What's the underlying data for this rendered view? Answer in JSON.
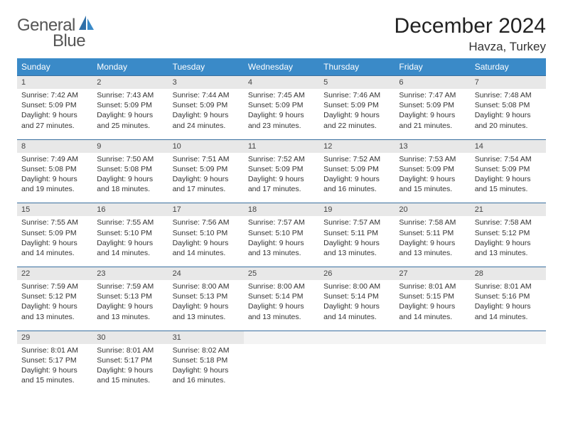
{
  "logo": {
    "text1": "General",
    "text2": "Blue"
  },
  "title": "December 2024",
  "location": "Havza, Turkey",
  "colors": {
    "header_bg": "#3a8ac8",
    "header_text": "#ffffff",
    "daynum_bg": "#e8e8e8",
    "daynum_border": "#3a6fa0",
    "body_text": "#333333",
    "logo_text": "#555555",
    "logo_accent": "#2f6fa8"
  },
  "typography": {
    "title_fontsize": 30,
    "location_fontsize": 17,
    "dayheader_fontsize": 12,
    "daynum_fontsize": 11,
    "detail_fontsize": 10.5
  },
  "dayHeaders": [
    "Sunday",
    "Monday",
    "Tuesday",
    "Wednesday",
    "Thursday",
    "Friday",
    "Saturday"
  ],
  "weeks": [
    [
      {
        "n": "1",
        "sr": "Sunrise: 7:42 AM",
        "ss": "Sunset: 5:09 PM",
        "d1": "Daylight: 9 hours",
        "d2": "and 27 minutes."
      },
      {
        "n": "2",
        "sr": "Sunrise: 7:43 AM",
        "ss": "Sunset: 5:09 PM",
        "d1": "Daylight: 9 hours",
        "d2": "and 25 minutes."
      },
      {
        "n": "3",
        "sr": "Sunrise: 7:44 AM",
        "ss": "Sunset: 5:09 PM",
        "d1": "Daylight: 9 hours",
        "d2": "and 24 minutes."
      },
      {
        "n": "4",
        "sr": "Sunrise: 7:45 AM",
        "ss": "Sunset: 5:09 PM",
        "d1": "Daylight: 9 hours",
        "d2": "and 23 minutes."
      },
      {
        "n": "5",
        "sr": "Sunrise: 7:46 AM",
        "ss": "Sunset: 5:09 PM",
        "d1": "Daylight: 9 hours",
        "d2": "and 22 minutes."
      },
      {
        "n": "6",
        "sr": "Sunrise: 7:47 AM",
        "ss": "Sunset: 5:09 PM",
        "d1": "Daylight: 9 hours",
        "d2": "and 21 minutes."
      },
      {
        "n": "7",
        "sr": "Sunrise: 7:48 AM",
        "ss": "Sunset: 5:08 PM",
        "d1": "Daylight: 9 hours",
        "d2": "and 20 minutes."
      }
    ],
    [
      {
        "n": "8",
        "sr": "Sunrise: 7:49 AM",
        "ss": "Sunset: 5:08 PM",
        "d1": "Daylight: 9 hours",
        "d2": "and 19 minutes."
      },
      {
        "n": "9",
        "sr": "Sunrise: 7:50 AM",
        "ss": "Sunset: 5:08 PM",
        "d1": "Daylight: 9 hours",
        "d2": "and 18 minutes."
      },
      {
        "n": "10",
        "sr": "Sunrise: 7:51 AM",
        "ss": "Sunset: 5:09 PM",
        "d1": "Daylight: 9 hours",
        "d2": "and 17 minutes."
      },
      {
        "n": "11",
        "sr": "Sunrise: 7:52 AM",
        "ss": "Sunset: 5:09 PM",
        "d1": "Daylight: 9 hours",
        "d2": "and 17 minutes."
      },
      {
        "n": "12",
        "sr": "Sunrise: 7:52 AM",
        "ss": "Sunset: 5:09 PM",
        "d1": "Daylight: 9 hours",
        "d2": "and 16 minutes."
      },
      {
        "n": "13",
        "sr": "Sunrise: 7:53 AM",
        "ss": "Sunset: 5:09 PM",
        "d1": "Daylight: 9 hours",
        "d2": "and 15 minutes."
      },
      {
        "n": "14",
        "sr": "Sunrise: 7:54 AM",
        "ss": "Sunset: 5:09 PM",
        "d1": "Daylight: 9 hours",
        "d2": "and 15 minutes."
      }
    ],
    [
      {
        "n": "15",
        "sr": "Sunrise: 7:55 AM",
        "ss": "Sunset: 5:09 PM",
        "d1": "Daylight: 9 hours",
        "d2": "and 14 minutes."
      },
      {
        "n": "16",
        "sr": "Sunrise: 7:55 AM",
        "ss": "Sunset: 5:10 PM",
        "d1": "Daylight: 9 hours",
        "d2": "and 14 minutes."
      },
      {
        "n": "17",
        "sr": "Sunrise: 7:56 AM",
        "ss": "Sunset: 5:10 PM",
        "d1": "Daylight: 9 hours",
        "d2": "and 14 minutes."
      },
      {
        "n": "18",
        "sr": "Sunrise: 7:57 AM",
        "ss": "Sunset: 5:10 PM",
        "d1": "Daylight: 9 hours",
        "d2": "and 13 minutes."
      },
      {
        "n": "19",
        "sr": "Sunrise: 7:57 AM",
        "ss": "Sunset: 5:11 PM",
        "d1": "Daylight: 9 hours",
        "d2": "and 13 minutes."
      },
      {
        "n": "20",
        "sr": "Sunrise: 7:58 AM",
        "ss": "Sunset: 5:11 PM",
        "d1": "Daylight: 9 hours",
        "d2": "and 13 minutes."
      },
      {
        "n": "21",
        "sr": "Sunrise: 7:58 AM",
        "ss": "Sunset: 5:12 PM",
        "d1": "Daylight: 9 hours",
        "d2": "and 13 minutes."
      }
    ],
    [
      {
        "n": "22",
        "sr": "Sunrise: 7:59 AM",
        "ss": "Sunset: 5:12 PM",
        "d1": "Daylight: 9 hours",
        "d2": "and 13 minutes."
      },
      {
        "n": "23",
        "sr": "Sunrise: 7:59 AM",
        "ss": "Sunset: 5:13 PM",
        "d1": "Daylight: 9 hours",
        "d2": "and 13 minutes."
      },
      {
        "n": "24",
        "sr": "Sunrise: 8:00 AM",
        "ss": "Sunset: 5:13 PM",
        "d1": "Daylight: 9 hours",
        "d2": "and 13 minutes."
      },
      {
        "n": "25",
        "sr": "Sunrise: 8:00 AM",
        "ss": "Sunset: 5:14 PM",
        "d1": "Daylight: 9 hours",
        "d2": "and 13 minutes."
      },
      {
        "n": "26",
        "sr": "Sunrise: 8:00 AM",
        "ss": "Sunset: 5:14 PM",
        "d1": "Daylight: 9 hours",
        "d2": "and 14 minutes."
      },
      {
        "n": "27",
        "sr": "Sunrise: 8:01 AM",
        "ss": "Sunset: 5:15 PM",
        "d1": "Daylight: 9 hours",
        "d2": "and 14 minutes."
      },
      {
        "n": "28",
        "sr": "Sunrise: 8:01 AM",
        "ss": "Sunset: 5:16 PM",
        "d1": "Daylight: 9 hours",
        "d2": "and 14 minutes."
      }
    ],
    [
      {
        "n": "29",
        "sr": "Sunrise: 8:01 AM",
        "ss": "Sunset: 5:17 PM",
        "d1": "Daylight: 9 hours",
        "d2": "and 15 minutes."
      },
      {
        "n": "30",
        "sr": "Sunrise: 8:01 AM",
        "ss": "Sunset: 5:17 PM",
        "d1": "Daylight: 9 hours",
        "d2": "and 15 minutes."
      },
      {
        "n": "31",
        "sr": "Sunrise: 8:02 AM",
        "ss": "Sunset: 5:18 PM",
        "d1": "Daylight: 9 hours",
        "d2": "and 16 minutes."
      },
      null,
      null,
      null,
      null
    ]
  ]
}
